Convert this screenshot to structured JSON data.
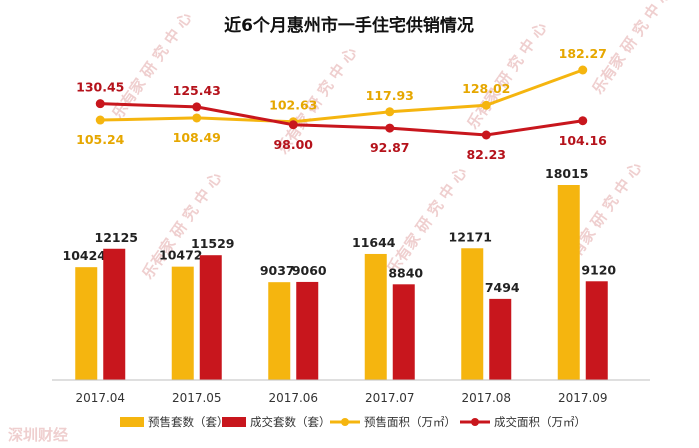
{
  "chart_data": {
    "type": "bar",
    "title": "近6个月惠州市一手住宅供销情况",
    "categories": [
      "2017.04",
      "2017.05",
      "2017.06",
      "2017.07",
      "2017.08",
      "2017.09"
    ],
    "bar_series": [
      {
        "name": "预售套数（套）",
        "color": "#F5B50F",
        "values": [
          10424,
          10472,
          9037,
          11644,
          12171,
          18015
        ]
      },
      {
        "name": "成交套数（套）",
        "color": "#C8161D",
        "values": [
          12125,
          11529,
          9060,
          8840,
          7494,
          9120
        ]
      }
    ],
    "line_series": [
      {
        "name": "预售面积（万㎡）",
        "color": "#F5B50F",
        "values": [
          105.24,
          108.49,
          102.63,
          117.93,
          128.02,
          182.27
        ]
      },
      {
        "name": "成交面积（万㎡）",
        "color": "#C8161D",
        "values": [
          130.45,
          125.43,
          98.0,
          92.87,
          82.23,
          104.16
        ]
      }
    ],
    "bar_value_labels": [
      [
        "10424",
        "10472",
        "9037",
        "11644",
        "12171",
        "18015"
      ],
      [
        "12125",
        "11529",
        "9060",
        "8840",
        "7494",
        "9120"
      ]
    ],
    "line_value_labels": [
      [
        "105.24",
        "108.49",
        "102.63",
        "117.93",
        "128.02",
        "182.27"
      ],
      [
        "130.45",
        "125.43",
        "98.00",
        "92.87",
        "82.23",
        "104.16"
      ]
    ],
    "legend_position": "bottom",
    "grid": false
  },
  "watermark": {
    "brand": "乐有家",
    "research": "研 究 中 心",
    "corner": "深圳财经"
  }
}
